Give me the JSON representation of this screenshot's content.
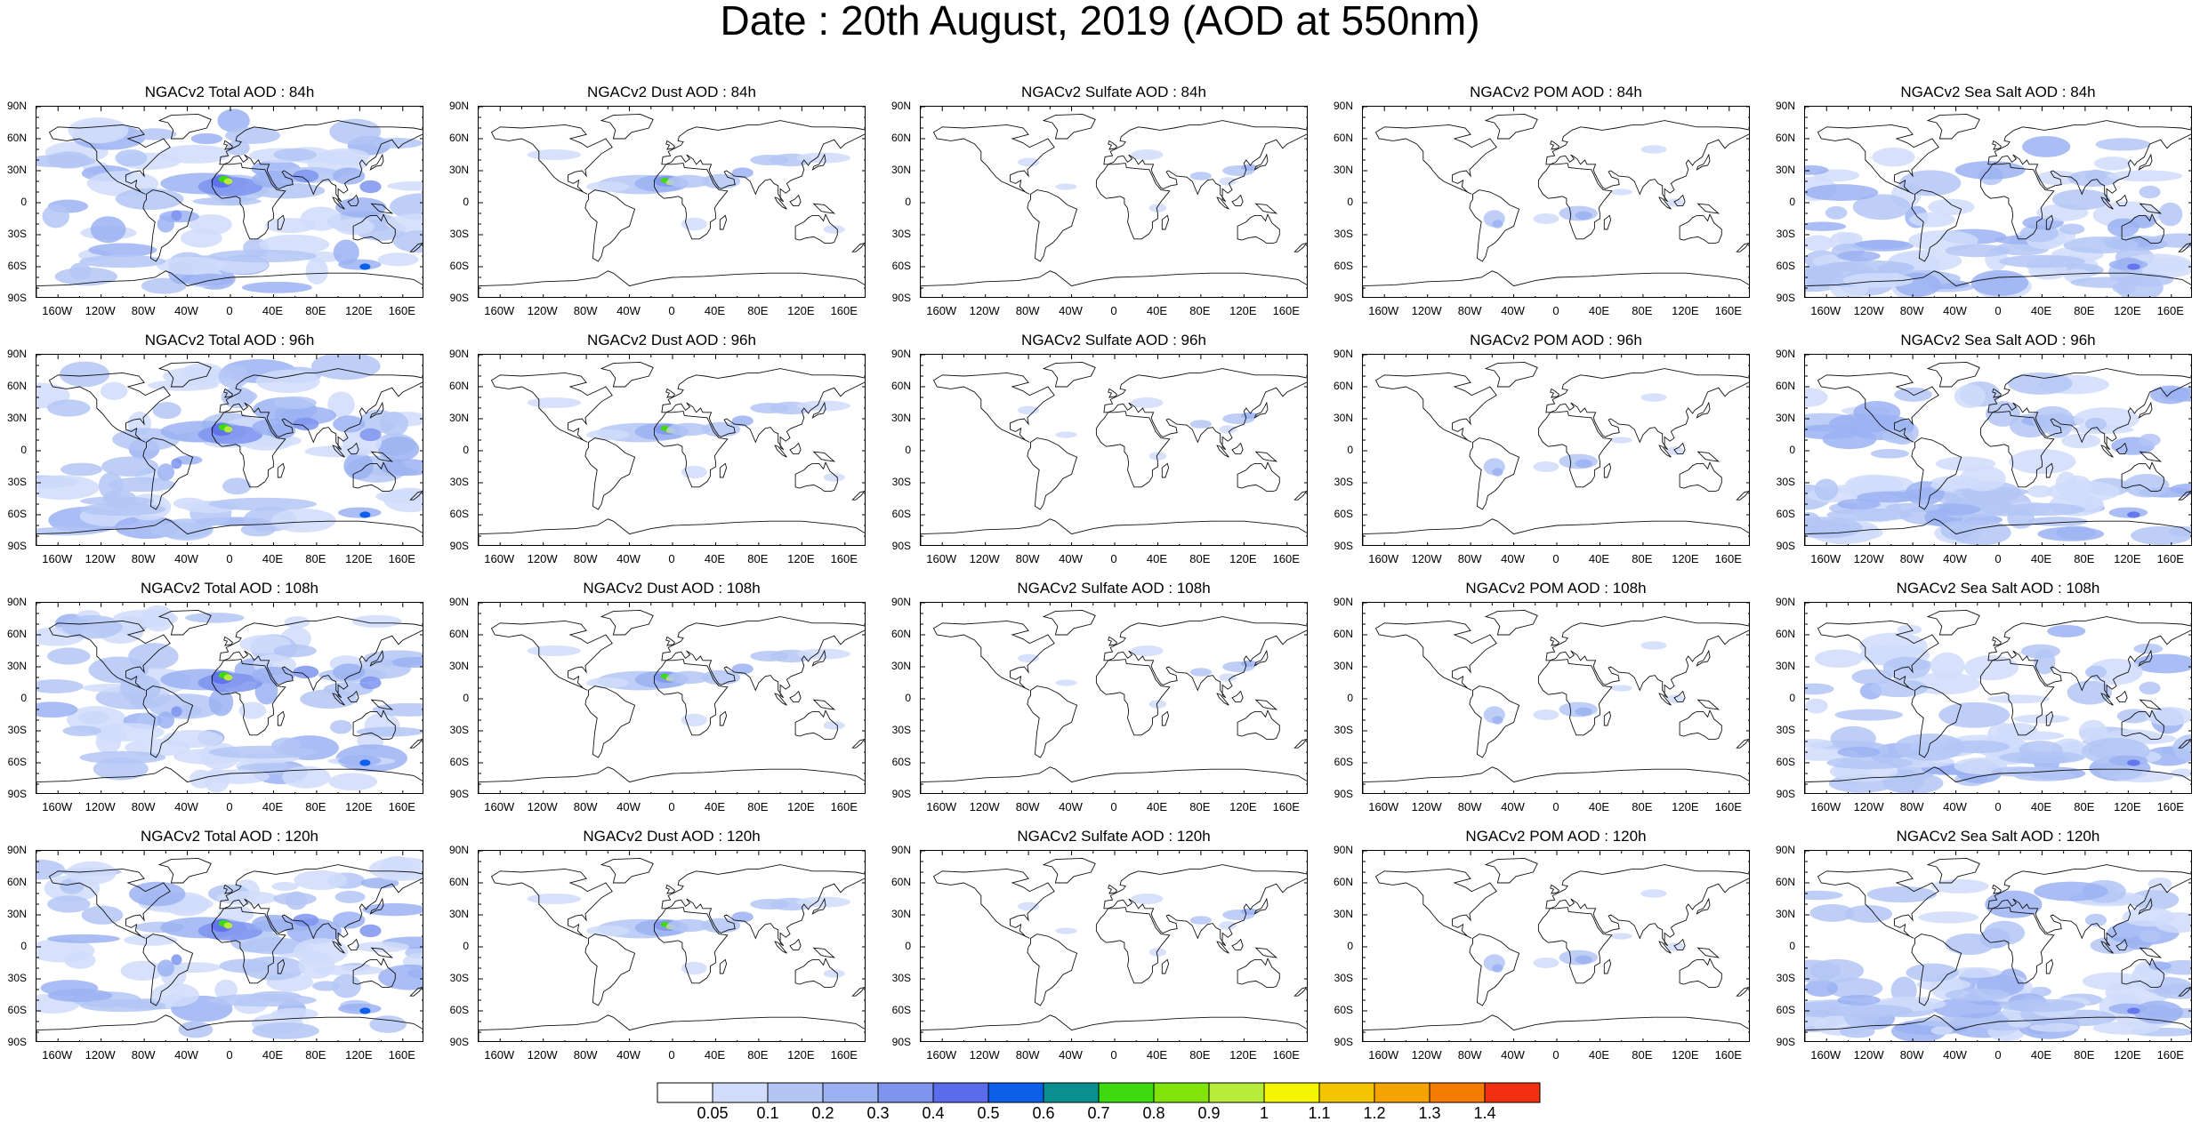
{
  "page_title": "Date : 20th August, 2019 (AOD at 550nm)",
  "lat_labels": [
    "90N",
    "60N",
    "30N",
    "0",
    "30S",
    "60S",
    "90S"
  ],
  "lon_labels": [
    "160W",
    "120W",
    "80W",
    "40W",
    "0",
    "40E",
    "80E",
    "120E",
    "160E"
  ],
  "panels": [
    {
      "title": "NGACv2 Total AOD : 84h",
      "species": "total",
      "hour": 84
    },
    {
      "title": "NGACv2 Dust AOD : 84h",
      "species": "dust",
      "hour": 84
    },
    {
      "title": "NGACv2 Sulfate AOD : 84h",
      "species": "sulfate",
      "hour": 84
    },
    {
      "title": "NGACv2 POM AOD : 84h",
      "species": "pom",
      "hour": 84
    },
    {
      "title": "NGACv2 Sea Salt AOD : 84h",
      "species": "seasalt",
      "hour": 84
    },
    {
      "title": "NGACv2 Total AOD : 96h",
      "species": "total",
      "hour": 96
    },
    {
      "title": "NGACv2 Dust AOD : 96h",
      "species": "dust",
      "hour": 96
    },
    {
      "title": "NGACv2 Sulfate AOD : 96h",
      "species": "sulfate",
      "hour": 96
    },
    {
      "title": "NGACv2 POM AOD : 96h",
      "species": "pom",
      "hour": 96
    },
    {
      "title": "NGACv2 Sea Salt AOD : 96h",
      "species": "seasalt",
      "hour": 96
    },
    {
      "title": "NGACv2 Total AOD : 108h",
      "species": "total",
      "hour": 108
    },
    {
      "title": "NGACv2 Dust AOD : 108h",
      "species": "dust",
      "hour": 108
    },
    {
      "title": "NGACv2 Sulfate AOD : 108h",
      "species": "sulfate",
      "hour": 108
    },
    {
      "title": "NGACv2 POM AOD : 108h",
      "species": "pom",
      "hour": 108
    },
    {
      "title": "NGACv2 Sea Salt AOD : 108h",
      "species": "seasalt",
      "hour": 108
    },
    {
      "title": "NGACv2 Total AOD : 120h",
      "species": "total",
      "hour": 120
    },
    {
      "title": "NGACv2 Dust AOD : 120h",
      "species": "dust",
      "hour": 120
    },
    {
      "title": "NGACv2 Sulfate AOD : 120h",
      "species": "sulfate",
      "hour": 120
    },
    {
      "title": "NGACv2 POM AOD : 120h",
      "species": "pom",
      "hour": 120
    },
    {
      "title": "NGACv2 Sea Salt  AOD : 120h",
      "species": "seasalt",
      "hour": 120
    }
  ],
  "colorbar": {
    "colors": [
      "#ffffff",
      "#d0dcfa",
      "#b3c5f5",
      "#9bb1f2",
      "#7e94ee",
      "#5a6cec",
      "#0c5fe8",
      "#0a8f8f",
      "#3fd90f",
      "#80e40a",
      "#b7ec3a",
      "#f5f500",
      "#f5c400",
      "#f4a300",
      "#f47d00",
      "#f03010"
    ],
    "labels": [
      "0.05",
      "0.1",
      "0.2",
      "0.3",
      "0.4",
      "0.5",
      "0.6",
      "0.7",
      "0.8",
      "0.9",
      "1",
      "1.1",
      "1.2",
      "1.3",
      "1.4"
    ]
  }
}
